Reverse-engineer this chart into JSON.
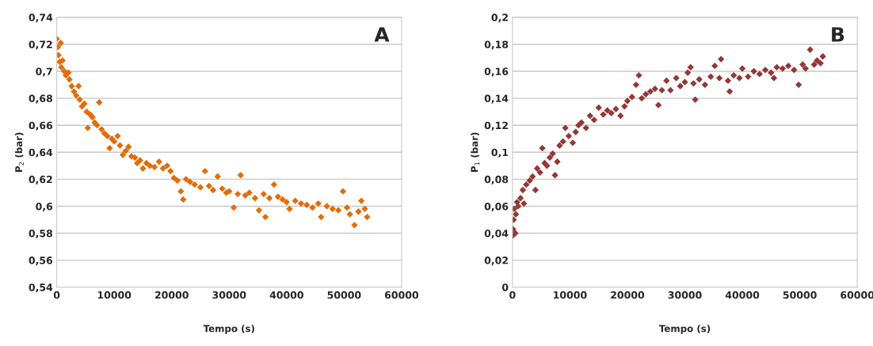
{
  "chart_data": [
    {
      "type": "scatter",
      "xlabel": "Tempo (s)",
      "ylabel": "P$_{2}$ (bar)",
      "annotations": [
        "A"
      ],
      "marker": "diamond",
      "grid": "y",
      "legend": false,
      "xlim": [
        0,
        60000
      ],
      "xticks": [
        0,
        10000,
        20000,
        30000,
        40000,
        50000,
        60000
      ],
      "ylim": [
        0.54,
        0.74
      ],
      "yticks": [
        {
          "value": 0.54,
          "label": "0,54"
        },
        {
          "value": 0.56,
          "label": "0,56"
        },
        {
          "value": 0.58,
          "label": "0,58"
        },
        {
          "value": 0.6,
          "label": "0,6"
        },
        {
          "value": 0.62,
          "label": "0,62"
        },
        {
          "value": 0.64,
          "label": "0,64"
        },
        {
          "value": 0.66,
          "label": "0,66"
        },
        {
          "value": 0.68,
          "label": "0,68"
        },
        {
          "value": 0.7,
          "label": "0,7"
        },
        {
          "value": 0.72,
          "label": "0,72"
        },
        {
          "value": 0.74,
          "label": "0,74"
        }
      ],
      "series": [
        {
          "color": "#e36c0a",
          "x": [
            0,
            200,
            300,
            500,
            700,
            800,
            1000,
            1300,
            1600,
            2000,
            2200,
            2600,
            3000,
            3400,
            3800,
            4000,
            4400,
            4800,
            5200,
            5400,
            5800,
            6200,
            6600,
            7000,
            7400,
            7800,
            8300,
            8800,
            9200,
            9600,
            10000,
            10600,
            11000,
            11500,
            12000,
            12500,
            13000,
            13600,
            14000,
            14500,
            15000,
            15600,
            16200,
            17000,
            17800,
            18500,
            19200,
            19800,
            20400,
            21000,
            21600,
            22000,
            22500,
            23200,
            24000,
            25000,
            25800,
            26500,
            27200,
            28000,
            28800,
            29500,
            30000,
            30800,
            31500,
            32000,
            32800,
            33500,
            34500,
            35200,
            36000,
            36300,
            37000,
            37800,
            38500,
            39300,
            40000,
            40500,
            41500,
            42500,
            43500,
            44500,
            45500,
            46000,
            47000,
            48000,
            49000,
            49800,
            50500,
            51000,
            51800,
            52500,
            53000,
            53600,
            54000
          ],
          "values": [
            0.724,
            0.718,
            0.712,
            0.707,
            0.721,
            0.703,
            0.708,
            0.7,
            0.697,
            0.699,
            0.694,
            0.689,
            0.685,
            0.682,
            0.689,
            0.679,
            0.674,
            0.676,
            0.67,
            0.658,
            0.668,
            0.666,
            0.662,
            0.66,
            0.677,
            0.657,
            0.654,
            0.652,
            0.643,
            0.65,
            0.648,
            0.652,
            0.645,
            0.638,
            0.641,
            0.644,
            0.637,
            0.636,
            0.632,
            0.634,
            0.628,
            0.632,
            0.63,
            0.629,
            0.633,
            0.628,
            0.63,
            0.626,
            0.621,
            0.619,
            0.611,
            0.605,
            0.62,
            0.618,
            0.616,
            0.614,
            0.626,
            0.615,
            0.612,
            0.622,
            0.613,
            0.61,
            0.611,
            0.599,
            0.609,
            0.623,
            0.608,
            0.61,
            0.606,
            0.597,
            0.609,
            0.592,
            0.606,
            0.616,
            0.607,
            0.605,
            0.603,
            0.598,
            0.604,
            0.602,
            0.601,
            0.599,
            0.602,
            0.592,
            0.6,
            0.598,
            0.597,
            0.611,
            0.599,
            0.594,
            0.586,
            0.596,
            0.604,
            0.598,
            0.592
          ]
        }
      ]
    },
    {
      "type": "scatter",
      "xlabel": "Tempo (s)",
      "ylabel": "P$_{1}$ (bar)",
      "annotations": [
        "B"
      ],
      "marker": "diamond",
      "grid": "y",
      "legend": false,
      "xlim": [
        0,
        60000
      ],
      "xticks": [
        0,
        10000,
        20000,
        30000,
        40000,
        50000,
        60000
      ],
      "ylim": [
        0,
        0.2
      ],
      "yticks": [
        0,
        {
          "value": 0.02,
          "label": "0,02"
        },
        {
          "value": 0.04,
          "label": "0,04"
        },
        {
          "value": 0.06,
          "label": "0,06"
        },
        {
          "value": 0.08,
          "label": "0,08"
        },
        {
          "value": 0.1,
          "label": "0,1"
        },
        {
          "value": 0.12,
          "label": "0,12"
        },
        {
          "value": 0.14,
          "label": "0,14"
        },
        {
          "value": 0.16,
          "label": "0,16"
        },
        {
          "value": 0.18,
          "label": "0,18"
        },
        {
          "value": 0.2,
          "label": "0,2"
        }
      ],
      "series": [
        {
          "color": "#953735",
          "x": [
            0,
            100,
            200,
            300,
            500,
            600,
            800,
            1000,
            1400,
            1800,
            2000,
            2400,
            3000,
            3500,
            4000,
            4300,
            4800,
            5200,
            5600,
            6000,
            6500,
            7000,
            7400,
            7800,
            8200,
            8800,
            9200,
            9800,
            10500,
            11000,
            11500,
            12000,
            12800,
            13500,
            14200,
            15000,
            15800,
            16500,
            17200,
            18000,
            18800,
            19500,
            20000,
            20800,
            21500,
            22000,
            22500,
            23200,
            24000,
            24800,
            25400,
            26000,
            26800,
            27500,
            28500,
            29200,
            30000,
            30500,
            31000,
            31500,
            31800,
            32500,
            33500,
            34500,
            35200,
            36000,
            36300,
            37500,
            37800,
            38500,
            39500,
            40000,
            41000,
            42000,
            43000,
            44000,
            45000,
            45500,
            46000,
            47000,
            48000,
            49000,
            49800,
            50500,
            51000,
            51800,
            52500,
            53000,
            53600,
            54000
          ],
          "values": [
            0.038,
            0.043,
            0.05,
            0.058,
            0.04,
            0.054,
            0.063,
            0.06,
            0.066,
            0.072,
            0.062,
            0.076,
            0.079,
            0.082,
            0.072,
            0.088,
            0.085,
            0.103,
            0.092,
            0.09,
            0.096,
            0.099,
            0.083,
            0.093,
            0.105,
            0.108,
            0.118,
            0.112,
            0.107,
            0.115,
            0.12,
            0.122,
            0.118,
            0.127,
            0.124,
            0.133,
            0.128,
            0.131,
            0.129,
            0.132,
            0.127,
            0.134,
            0.138,
            0.141,
            0.15,
            0.157,
            0.14,
            0.143,
            0.145,
            0.147,
            0.135,
            0.146,
            0.153,
            0.146,
            0.155,
            0.149,
            0.152,
            0.159,
            0.163,
            0.151,
            0.139,
            0.154,
            0.15,
            0.156,
            0.164,
            0.155,
            0.169,
            0.153,
            0.145,
            0.157,
            0.155,
            0.162,
            0.156,
            0.16,
            0.158,
            0.161,
            0.159,
            0.155,
            0.163,
            0.162,
            0.164,
            0.161,
            0.15,
            0.165,
            0.162,
            0.176,
            0.165,
            0.168,
            0.166,
            0.171
          ]
        }
      ]
    }
  ]
}
